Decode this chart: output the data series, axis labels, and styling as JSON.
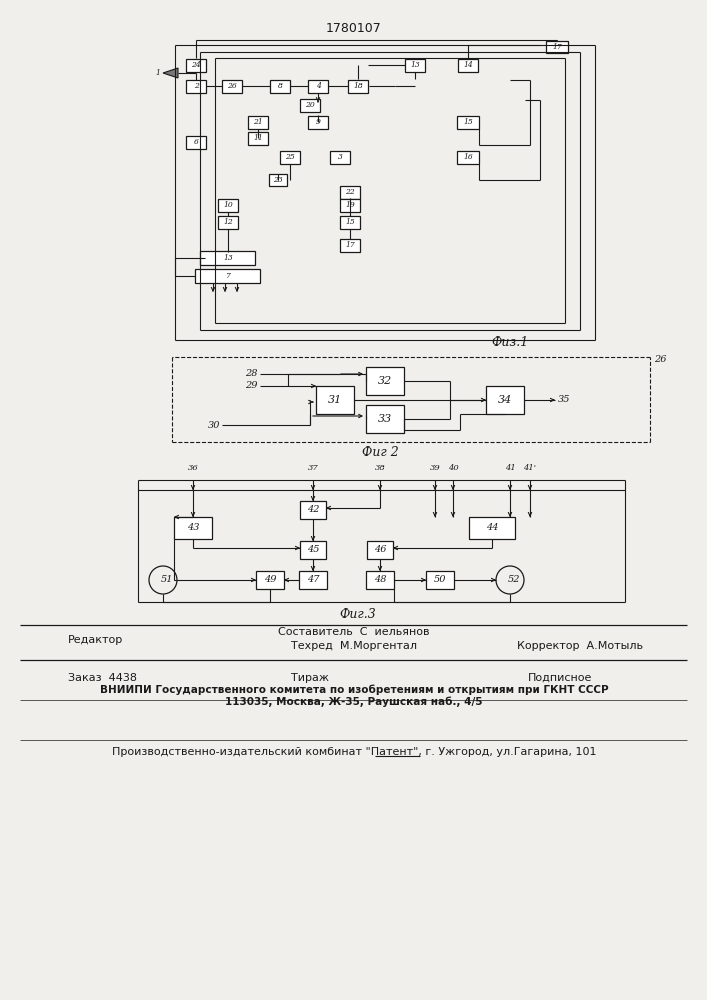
{
  "title": "1780107",
  "bg_color": "#f0efeb",
  "line_color": "#1a1a1a",
  "fig1_caption": "Физ.1",
  "fig2_caption": "Фиг 2",
  "fig3_caption": "Фиг.3",
  "footer_editor": "Редактор",
  "footer_comp1": "Составитель  С  иельянов",
  "footer_comp2": "Техред  М.Моргентал",
  "footer_corrector": "Корректор  А.Мотыль",
  "footer_order": "Заказ  4438",
  "footer_tirazh": "Тираж",
  "footer_podpisnoe": "Подписное",
  "footer_vniip": "ВНИИПИ Государственного комитета по изобретениям и открытиям при ГКНТ СССР",
  "footer_address": "113035, Москва, Ж-35, Раушская наб., 4/5",
  "footer_patent": "Производственно-издательский комбинат \"Патент\", г. Ужгород, ул.Гагарина, 101"
}
